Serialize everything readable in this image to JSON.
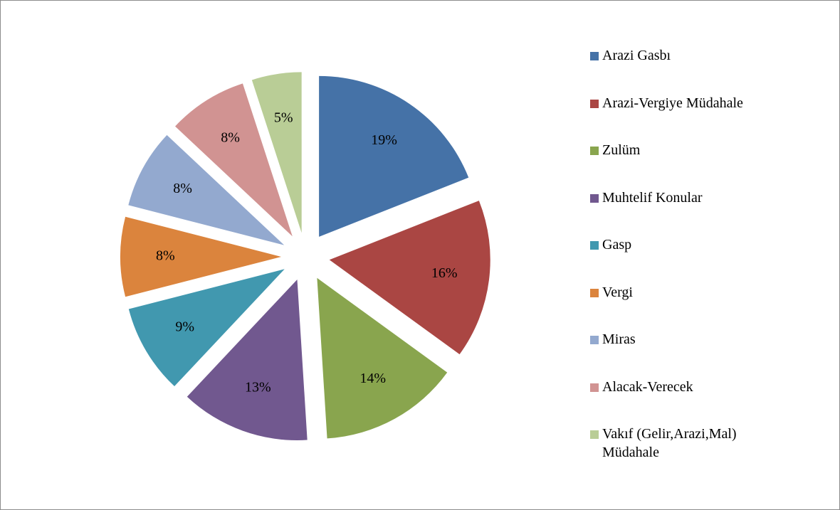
{
  "chart_data": {
    "type": "pie",
    "categories": [
      "Arazi Gasbı",
      "Arazi-Vergiye Müdahale",
      "Zulüm",
      "Muhtelif Konular",
      "Gasp",
      "Vergi",
      "Miras",
      "Alacak-Verecek",
      "Vakıf (Gelir,Arazi,Mal) Müdahale"
    ],
    "values": [
      19,
      16,
      14,
      13,
      9,
      8,
      8,
      8,
      5
    ],
    "value_labels": [
      "19%",
      "16%",
      "14%",
      "13%",
      "9%",
      "8%",
      "8%",
      "8%",
      "5%"
    ],
    "colors": [
      "#4572a7",
      "#aa4643",
      "#89a54e",
      "#71588f",
      "#4198af",
      "#db843d",
      "#93a9cf",
      "#d19392",
      "#b9cd96"
    ],
    "legend": "right"
  }
}
